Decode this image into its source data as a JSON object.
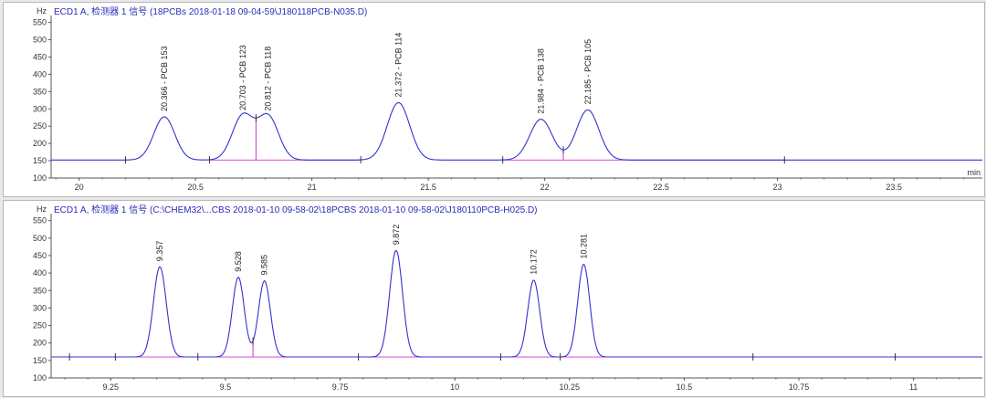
{
  "colors": {
    "trace": "#3333cc",
    "baseline": "#cc33cc",
    "axis": "#555555",
    "title": "#2a2ab8"
  },
  "chart_data": [
    {
      "type": "line",
      "title": "ECD1 A, 检测器 1 信号 (18PCBs 2018-01-18 09-04-59\\J180118PCB-N035.D)",
      "ylabel": "Hz",
      "xlabel": "min",
      "xlim": [
        19.88,
        23.88
      ],
      "ylim": [
        100,
        570
      ],
      "yticks": [
        100,
        150,
        200,
        250,
        300,
        350,
        400,
        450,
        500,
        550
      ],
      "xticks": [
        20,
        20.5,
        21,
        21.5,
        22,
        22.5,
        23,
        23.5
      ],
      "xtick_labels": [
        "20",
        "20.5",
        "21",
        "21.5",
        "22",
        "22.5",
        "23",
        "23.5"
      ],
      "baseline": 152,
      "peaks": [
        {
          "x": 20.366,
          "height": 277,
          "width": 0.045,
          "label": "20.366 - PCB 153"
        },
        {
          "x": 20.703,
          "height": 280,
          "width": 0.045,
          "label": "20.703 - PCB 123"
        },
        {
          "x": 20.812,
          "height": 278,
          "width": 0.045,
          "label": "20.812 - PCB 118"
        },
        {
          "x": 21.372,
          "height": 318,
          "width": 0.048,
          "label": "21.372 - PCB 114"
        },
        {
          "x": 21.984,
          "height": 270,
          "width": 0.048,
          "label": "21.984 - PCB 138"
        },
        {
          "x": 22.185,
          "height": 297,
          "width": 0.048,
          "label": "22.185 - PCB 105"
        }
      ],
      "markers": [
        20.2,
        20.56,
        20.76,
        21.21,
        21.82,
        22.08,
        23.03
      ],
      "drops": [
        20.76,
        22.08
      ],
      "integration_segments": [
        [
          20.56,
          21.21
        ],
        [
          21.82,
          23.03
        ]
      ]
    },
    {
      "type": "line",
      "title": "ECD1 A, 检测器 1 信号 (C:\\CHEM32\\...CBS  2018-01-10  09-58-02\\18PCBS  2018-01-10  09-58-02\\J180110PCB-H025.D)",
      "ylabel": "Hz",
      "xlabel": "",
      "xlim": [
        9.12,
        11.15
      ],
      "ylim": [
        100,
        570
      ],
      "yticks": [
        100,
        150,
        200,
        250,
        300,
        350,
        400,
        450,
        500,
        550
      ],
      "xticks": [
        9.25,
        9.5,
        9.75,
        10,
        10.25,
        10.5,
        10.75,
        11
      ],
      "xtick_labels": [
        "9.25",
        "9.5",
        "9.75",
        "10",
        "10.25",
        "10.5",
        "10.75",
        "11"
      ],
      "baseline": 160,
      "peaks": [
        {
          "x": 9.357,
          "height": 418,
          "width": 0.014,
          "label": "9.357"
        },
        {
          "x": 9.528,
          "height": 388,
          "width": 0.013,
          "label": "9.528"
        },
        {
          "x": 9.585,
          "height": 378,
          "width": 0.013,
          "label": "9.585"
        },
        {
          "x": 9.872,
          "height": 465,
          "width": 0.014,
          "label": "9.872"
        },
        {
          "x": 10.172,
          "height": 380,
          "width": 0.013,
          "label": "10.172"
        },
        {
          "x": 10.281,
          "height": 425,
          "width": 0.013,
          "label": "10.281"
        }
      ],
      "markers": [
        9.16,
        9.26,
        9.44,
        9.56,
        9.79,
        10.1,
        10.23,
        10.65,
        10.96
      ],
      "drops": [
        9.56,
        10.23
      ],
      "integration_segments": [
        [
          9.3,
          9.7
        ],
        [
          9.8,
          10.02
        ],
        [
          10.1,
          10.42
        ]
      ]
    }
  ]
}
